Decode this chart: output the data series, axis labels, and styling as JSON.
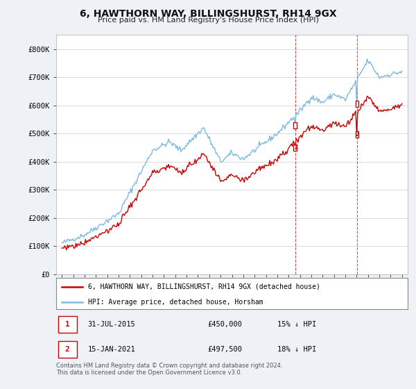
{
  "title": "6, HAWTHORN WAY, BILLINGSHURST, RH14 9GX",
  "subtitle": "Price paid vs. HM Land Registry's House Price Index (HPI)",
  "ylim": [
    0,
    850000
  ],
  "yticks": [
    0,
    100000,
    200000,
    300000,
    400000,
    500000,
    600000,
    700000,
    800000
  ],
  "ytick_labels": [
    "£0",
    "£100K",
    "£200K",
    "£300K",
    "£400K",
    "£500K",
    "£600K",
    "£700K",
    "£800K"
  ],
  "hpi_color": "#7cb9e0",
  "price_color": "#cc0000",
  "dashed_color": "#cc0000",
  "annotation1": {
    "label": "1",
    "date": "31-JUL-2015",
    "price": "£450,000",
    "hpi_rel": "15% ↓ HPI"
  },
  "annotation2": {
    "label": "2",
    "date": "15-JAN-2021",
    "price": "£497,500",
    "hpi_rel": "18% ↓ HPI"
  },
  "legend_line1": "6, HAWTHORN WAY, BILLINGSHURST, RH14 9GX (detached house)",
  "legend_line2": "HPI: Average price, detached house, Horsham",
  "footer": "Contains HM Land Registry data © Crown copyright and database right 2024.\nThis data is licensed under the Open Government Licence v3.0.",
  "background_color": "#eef2f7",
  "plot_background": "#ffffff",
  "marker1_x": 2015.58,
  "marker2_x": 2021.04,
  "marker1_price": 450000,
  "marker2_price": 497500,
  "hpi_at_marker1": 529000,
  "hpi_at_marker2": 606000
}
